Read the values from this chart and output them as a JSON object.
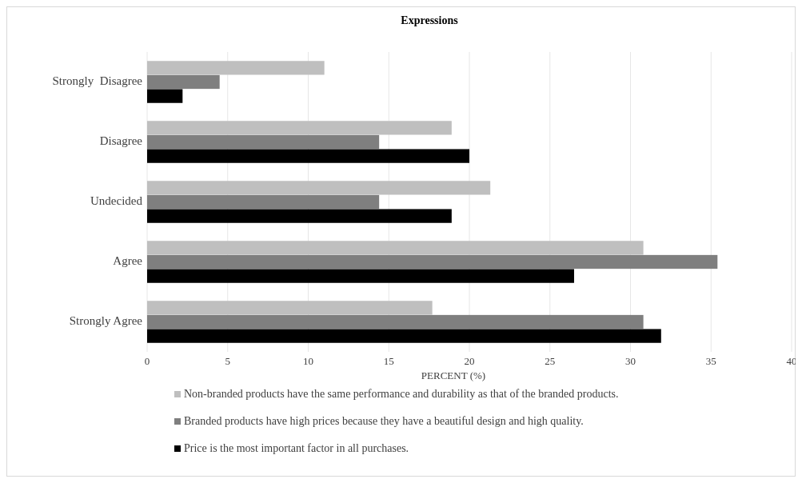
{
  "chart_data": {
    "type": "bar",
    "orientation": "horizontal",
    "title": "Expressions",
    "xlabel": "PERCENT (%)",
    "categories": [
      "Strongly  Disagree",
      "Disagree",
      "Undecided",
      "Agree",
      "Strongly Agree"
    ],
    "series": [
      {
        "name": "Non-branded products have the same performance and durability as that of the branded products.",
        "color": "#bfbfbf",
        "values": [
          11.0,
          18.9,
          21.3,
          30.8,
          17.7
        ]
      },
      {
        "name": "Branded products have high prices because they have a beautiful design and high quality.",
        "color": "#7f7f7f",
        "values": [
          4.5,
          14.4,
          14.4,
          35.4,
          30.8
        ]
      },
      {
        "name": "Price is the most important factor in all purchases.",
        "color": "#000000",
        "values": [
          2.2,
          20.0,
          18.9,
          26.5,
          31.9
        ]
      }
    ],
    "xlim": [
      0,
      40
    ],
    "xticks": [
      0,
      5,
      10,
      15,
      20,
      25,
      30,
      35,
      40
    ],
    "grid": "x",
    "legend": "bottom"
  }
}
